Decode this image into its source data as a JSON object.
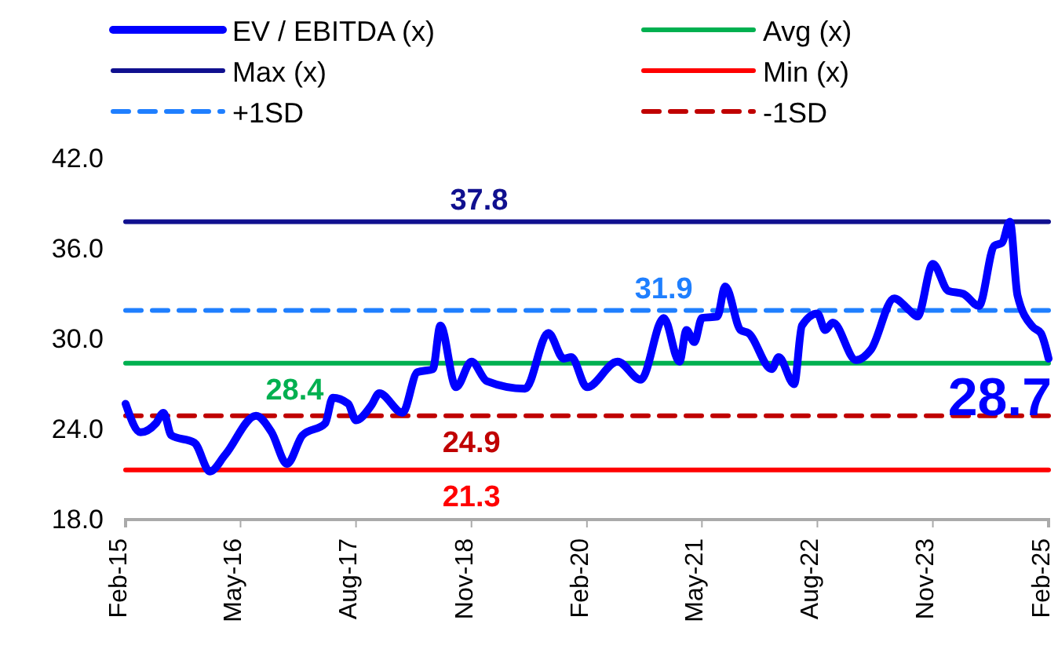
{
  "chart_data": {
    "type": "line",
    "legend": "top",
    "grid": false,
    "marker": "none",
    "xlim": [
      "2015-02",
      "2025-02"
    ],
    "xticks": [
      {
        "value": "2015-02",
        "label": "Feb-15"
      },
      {
        "value": "2016-05",
        "label": "May-16"
      },
      {
        "value": "2017-08",
        "label": "Aug-17"
      },
      {
        "value": "2018-11",
        "label": "Nov-18"
      },
      {
        "value": "2020-02",
        "label": "Feb-20"
      },
      {
        "value": "2021-05",
        "label": "May-21"
      },
      {
        "value": "2022-08",
        "label": "Aug-22"
      },
      {
        "value": "2023-11",
        "label": "Nov-23"
      },
      {
        "value": "2025-02",
        "label": "Feb-25"
      }
    ],
    "ylim": [
      18,
      42
    ],
    "yticks": [
      {
        "value": 18,
        "label": "18.0"
      },
      {
        "value": 24,
        "label": "24.0"
      },
      {
        "value": 30,
        "label": "30.0"
      },
      {
        "value": 36,
        "label": "36.0"
      },
      {
        "value": 42,
        "label": "42.0"
      }
    ],
    "series": [
      {
        "name": "EV / EBITDA (x)",
        "color": "#0000ff",
        "line_style": "solid",
        "x": [
          "2015-02",
          "2015-04",
          "2015-06",
          "2015-07",
          "2015-08",
          "2015-11",
          "2016-01",
          "2016-03",
          "2016-07",
          "2016-09",
          "2016-11",
          "2017-01",
          "2017-04",
          "2017-05",
          "2017-07",
          "2017-08",
          "2017-10",
          "2017-11",
          "2018-02",
          "2018-04",
          "2018-06",
          "2018-07",
          "2018-09",
          "2018-11",
          "2019-01",
          "2019-06",
          "2019-09",
          "2019-11",
          "2019-12",
          "2020-02",
          "2020-06",
          "2020-09",
          "2020-12",
          "2021-02",
          "2021-03",
          "2021-04",
          "2021-05",
          "2021-07",
          "2021-08",
          "2021-10",
          "2021-11",
          "2022-02",
          "2022-03",
          "2022-05",
          "2022-06",
          "2022-08",
          "2022-09",
          "2022-10",
          "2023-01",
          "2023-03",
          "2023-06",
          "2023-08",
          "2023-09",
          "2023-11",
          "2024-01",
          "2024-03",
          "2024-05",
          "2024-07",
          "2024-08",
          "2024-09",
          "2024-10",
          "2024-12",
          "2025-01",
          "2025-02"
        ],
        "values": [
          25.7,
          23.8,
          24.4,
          25.1,
          23.6,
          23.1,
          21.2,
          22.3,
          24.9,
          23.8,
          21.7,
          23.6,
          24.4,
          26.1,
          25.7,
          24.6,
          25.6,
          26.4,
          25.1,
          27.8,
          28.0,
          30.9,
          26.8,
          28.5,
          27.2,
          26.7,
          30.4,
          28.7,
          28.8,
          26.8,
          28.5,
          27.3,
          31.4,
          28.5,
          30.6,
          29.8,
          31.4,
          31.5,
          33.5,
          30.6,
          30.4,
          28.0,
          28.8,
          27.0,
          30.9,
          31.7,
          30.6,
          31.1,
          28.6,
          29.3,
          32.7,
          31.9,
          31.5,
          35.0,
          33.2,
          33.0,
          32.2,
          36.2,
          36.4,
          37.8,
          32.9,
          30.8,
          30.4,
          28.7
        ],
        "value_labels": [
          null,
          null,
          null,
          null,
          null,
          null,
          null,
          null,
          null,
          null,
          null,
          null,
          null,
          null,
          null,
          null,
          null,
          null,
          null,
          null,
          null,
          null,
          null,
          null,
          null,
          null,
          null,
          null,
          null,
          null,
          null,
          null,
          null,
          null,
          null,
          null,
          null,
          null,
          null,
          null,
          null,
          null,
          null,
          null,
          null,
          null,
          null,
          null,
          null,
          null,
          null,
          null,
          null,
          null,
          null,
          null,
          null,
          null,
          null,
          null,
          null,
          null,
          null,
          "28.7"
        ]
      },
      {
        "name": "Avg (x)",
        "color": "#00b050",
        "line_style": "solid",
        "x": [
          "2015-02",
          "2025-02"
        ],
        "values": [
          28.4,
          28.4
        ]
      },
      {
        "name": "Max (x)",
        "color": "#10108f",
        "line_style": "solid",
        "x": [
          "2015-02",
          "2025-02"
        ],
        "values": [
          37.8,
          37.8
        ]
      },
      {
        "name": "Min (x)",
        "color": "#ff0000",
        "line_style": "solid",
        "x": [
          "2015-02",
          "2025-02"
        ],
        "values": [
          21.3,
          21.3
        ]
      },
      {
        "name": "+1SD",
        "color": "#1f7fff",
        "line_style": "dashed",
        "x": [
          "2015-02",
          "2025-02"
        ],
        "values": [
          31.9,
          31.9
        ]
      },
      {
        "name": "-1SD",
        "color": "#c00000",
        "line_style": "dashed",
        "x": [
          "2015-02",
          "2025-02"
        ],
        "values": [
          24.9,
          24.9
        ]
      }
    ],
    "annotations": [
      {
        "text": "37.8",
        "x": "2018-12",
        "y": 37.8
      },
      {
        "text": "31.9",
        "x": "2020-12",
        "y": 31.9
      },
      {
        "text": "28.4",
        "x": "2016-12",
        "y": 28.4
      },
      {
        "text": "24.9",
        "x": "2018-11",
        "y": 24.9
      },
      {
        "text": "21.3",
        "x": "2018-11",
        "y": 21.3
      }
    ]
  }
}
